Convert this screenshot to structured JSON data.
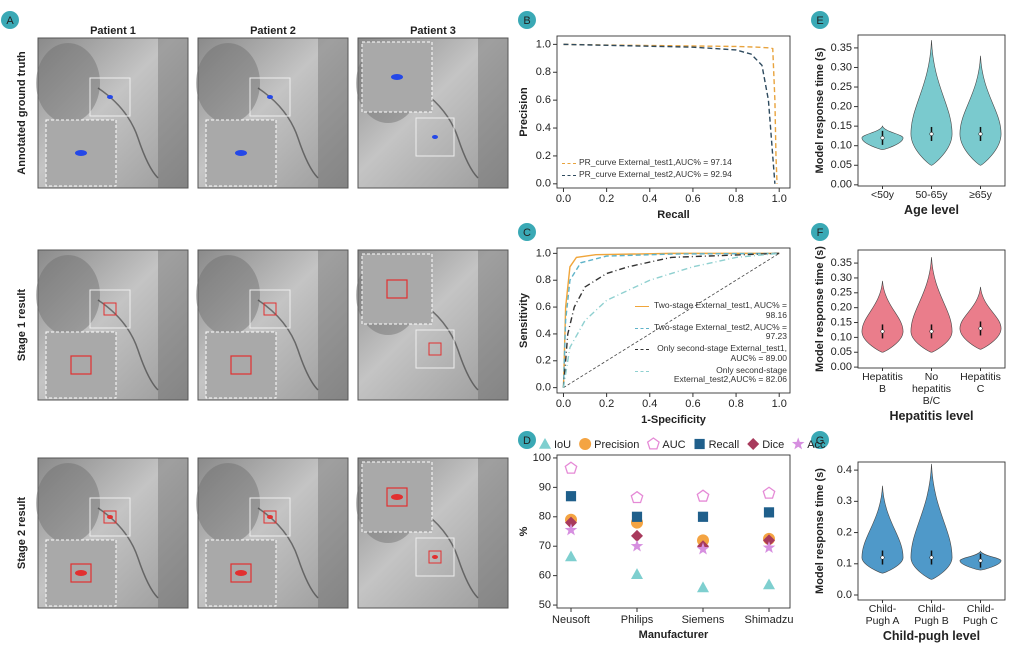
{
  "figure": {
    "panel_labels": [
      "A",
      "B",
      "C",
      "D",
      "E",
      "F",
      "G"
    ],
    "panel_a": {
      "columns": [
        "Patient 1",
        "Patient 2",
        "Patient 3"
      ],
      "rows": [
        "Annotated ground truth",
        "Stage 1 result",
        "Stage 2 result"
      ]
    }
  },
  "chart_data": [
    {
      "type": "line",
      "xlabel": "Recall",
      "ylabel": "Precision",
      "legend": "lower left",
      "xlim": [
        -0.03,
        1.05
      ],
      "ylim": [
        -0.03,
        1.06
      ],
      "xticks": [
        {
          "value": 0,
          "label": "0.0"
        },
        {
          "value": 0.2,
          "label": "0.2"
        },
        {
          "value": 0.4,
          "label": "0.4"
        },
        {
          "value": 0.6,
          "label": "0.6"
        },
        {
          "value": 0.8,
          "label": "0.8"
        },
        {
          "value": 1,
          "label": "1.0"
        }
      ],
      "yticks": [
        {
          "value": 0,
          "label": "0.0"
        },
        {
          "value": 0.2,
          "label": "0.2"
        },
        {
          "value": 0.4,
          "label": "0.4"
        },
        {
          "value": 0.6,
          "label": "0.6"
        },
        {
          "value": 0.8,
          "label": "0.8"
        },
        {
          "value": 1,
          "label": "1.0"
        }
      ],
      "series": [
        {
          "name": "PR_curve External_test1,AUC% = 97.14",
          "color": "#e8a33d",
          "dash": "dashed",
          "x": [
            0,
            0.2,
            0.5,
            0.8,
            0.9,
            0.95,
            0.97,
            0.98,
            0.985,
            0.99
          ],
          "values": [
            1,
            0.995,
            0.99,
            0.985,
            0.98,
            0.975,
            0.97,
            0.6,
            0.2,
            0
          ]
        },
        {
          "name": "PR_curve External_test2,AUC% = 92.94",
          "color": "#2e4a5e",
          "dash": "dashed",
          "x": [
            0,
            0.3,
            0.6,
            0.8,
            0.87,
            0.92,
            0.95,
            0.97,
            0.98
          ],
          "values": [
            1,
            0.99,
            0.98,
            0.96,
            0.93,
            0.85,
            0.6,
            0.2,
            0
          ]
        }
      ]
    },
    {
      "type": "line",
      "xlabel": "1-Specificity",
      "ylabel": "Sensitivity",
      "legend": "lower right",
      "xlim": [
        -0.03,
        1.05
      ],
      "ylim": [
        -0.04,
        1.04
      ],
      "xticks": [
        {
          "value": 0,
          "label": "0.0"
        },
        {
          "value": 0.2,
          "label": "0.2"
        },
        {
          "value": 0.4,
          "label": "0.4"
        },
        {
          "value": 0.6,
          "label": "0.6"
        },
        {
          "value": 0.8,
          "label": "0.8"
        },
        {
          "value": 1,
          "label": "1.0"
        }
      ],
      "yticks": [
        {
          "value": 0,
          "label": "0.0"
        },
        {
          "value": 0.2,
          "label": "0.2"
        },
        {
          "value": 0.4,
          "label": "0.4"
        },
        {
          "value": 0.6,
          "label": "0.6"
        },
        {
          "value": 0.8,
          "label": "0.8"
        },
        {
          "value": 1,
          "label": "1.0"
        }
      ],
      "series": [
        {
          "name": "Two-stage External_test1, AUC% = 98.16",
          "color": "#f0a53a",
          "dash": "solid",
          "x": [
            0,
            0.01,
            0.03,
            0.06,
            0.15,
            0.5,
            1
          ],
          "values": [
            0,
            0.6,
            0.9,
            0.97,
            0.99,
            1,
            1
          ]
        },
        {
          "name": "Two-stage External_test2, AUC% = 97.23",
          "color": "#5fb3c9",
          "dash": "dashed",
          "x": [
            0,
            0.01,
            0.03,
            0.08,
            0.2,
            0.5,
            1
          ],
          "values": [
            0,
            0.5,
            0.8,
            0.93,
            0.98,
            0.995,
            1
          ]
        },
        {
          "name": "Only second-stage External_test1, AUC% = 89.00",
          "color": "#333333",
          "dash": "dashdot",
          "x": [
            0,
            0.02,
            0.05,
            0.1,
            0.2,
            0.3,
            0.5,
            1
          ],
          "values": [
            0,
            0.4,
            0.6,
            0.75,
            0.85,
            0.9,
            0.97,
            1
          ]
        },
        {
          "name": "Only second-stage External_test2,AUC% = 82.06",
          "color": "#8fd0d0",
          "dash": "dashdot",
          "x": [
            0,
            0.03,
            0.1,
            0.2,
            0.4,
            0.6,
            0.8,
            1
          ],
          "values": [
            0,
            0.3,
            0.5,
            0.65,
            0.8,
            0.9,
            0.97,
            1
          ]
        }
      ]
    },
    {
      "type": "scatter",
      "xlabel": "Manufacturer",
      "ylabel": "%",
      "legend": "top",
      "categories": [
        "Neusoft",
        "Philips",
        "Siemens",
        "Shimadzu"
      ],
      "ylim": [
        49,
        101
      ],
      "yticks": [
        50,
        60,
        70,
        80,
        90,
        100
      ],
      "series": [
        {
          "name": "IoU",
          "color": "#7ecfcf",
          "marker": "triangle",
          "values": [
            66.5,
            60.5,
            56,
            57
          ]
        },
        {
          "name": "Precision",
          "color": "#f4a442",
          "marker": "circle",
          "values": [
            79,
            78,
            72,
            72.5
          ]
        },
        {
          "name": "AUC",
          "color": "#e58ad6",
          "marker": "pentagon",
          "values": [
            96.5,
            86.5,
            87,
            88
          ]
        },
        {
          "name": "Recall",
          "color": "#1f5f8b",
          "marker": "square",
          "values": [
            87,
            80,
            80,
            81.5
          ]
        },
        {
          "name": "Dice",
          "color": "#a83a5c",
          "marker": "diamond",
          "values": [
            78,
            73.5,
            70,
            72
          ]
        },
        {
          "name": "Acc",
          "color": "#d68fe0",
          "marker": "star",
          "values": [
            75.5,
            70,
            69,
            69.5
          ]
        }
      ]
    },
    {
      "type": "violin",
      "xlabel": "Age level",
      "ylabel": "Model response time (s)",
      "color": "#6cc5c9",
      "categories": [
        "<50y",
        "50-65y",
        "≥65y"
      ],
      "medians": [
        0.12,
        0.13,
        0.13
      ],
      "mins": [
        0.09,
        0.05,
        0.05
      ],
      "maxes": [
        0.15,
        0.37,
        0.33
      ],
      "ylim": [
        -0.003,
        0.383
      ],
      "yticks": [
        {
          "value": 0,
          "label": "0.00"
        },
        {
          "value": 0.05,
          "label": "0.05"
        },
        {
          "value": 0.1,
          "label": "0.10"
        },
        {
          "value": 0.15,
          "label": "0.15"
        },
        {
          "value": 0.2,
          "label": "0.20"
        },
        {
          "value": 0.25,
          "label": "0.25"
        },
        {
          "value": 0.3,
          "label": "0.30"
        },
        {
          "value": 0.35,
          "label": "0.35"
        }
      ]
    },
    {
      "type": "violin",
      "xlabel": "Hepatitis level",
      "ylabel": "Model response time (s)",
      "color": "#e8707f",
      "categories": [
        "Hepatitis B",
        "No hepatitis B/C",
        "Hepatitis C"
      ],
      "medians": [
        0.12,
        0.12,
        0.13
      ],
      "mins": [
        0.05,
        0.05,
        0.06
      ],
      "maxes": [
        0.29,
        0.37,
        0.27
      ],
      "ylim": [
        -0.003,
        0.394
      ],
      "yticks": [
        {
          "value": 0,
          "label": "0.00"
        },
        {
          "value": 0.05,
          "label": "0.05"
        },
        {
          "value": 0.1,
          "label": "0.10"
        },
        {
          "value": 0.15,
          "label": "0.15"
        },
        {
          "value": 0.2,
          "label": "0.20"
        },
        {
          "value": 0.25,
          "label": "0.25"
        },
        {
          "value": 0.3,
          "label": "0.30"
        },
        {
          "value": 0.35,
          "label": "0.35"
        }
      ]
    },
    {
      "type": "violin",
      "xlabel": "Child-pugh level",
      "ylabel": "Model response time (s)",
      "color": "#3d8fc4",
      "categories": [
        "Child-Pugh A",
        "Child-Pugh B",
        "Child-Pugh C"
      ],
      "medians": [
        0.12,
        0.12,
        0.11
      ],
      "mins": [
        0.07,
        0.05,
        0.08
      ],
      "maxes": [
        0.35,
        0.42,
        0.14
      ],
      "ylim": [
        -0.016,
        0.426
      ],
      "yticks": [
        {
          "value": 0,
          "label": "0.0"
        },
        {
          "value": 0.1,
          "label": "0.1"
        },
        {
          "value": 0.2,
          "label": "0.2"
        },
        {
          "value": 0.3,
          "label": "0.3"
        },
        {
          "value": 0.4,
          "label": "0.4"
        }
      ]
    }
  ]
}
